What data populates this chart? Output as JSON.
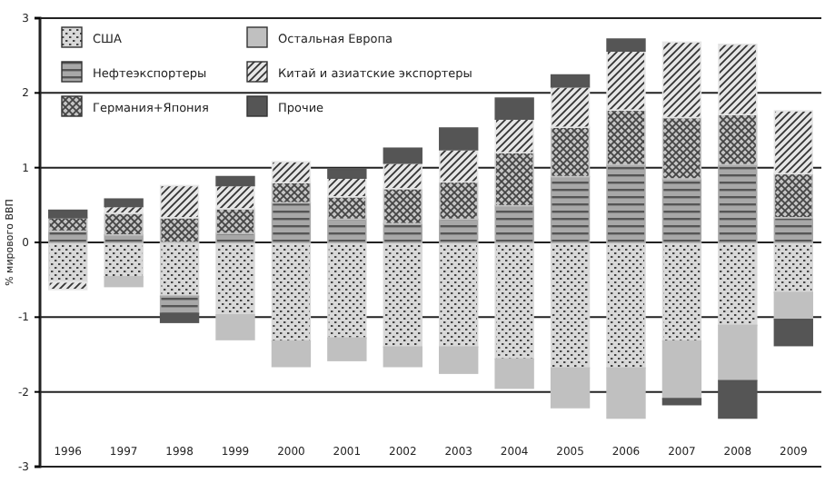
{
  "chart_data": {
    "type": "bar",
    "stacked": true,
    "ylabel": "% мирового ВВП",
    "categories": [
      "1996",
      "1997",
      "1998",
      "1999",
      "2000",
      "2001",
      "2002",
      "2003",
      "2004",
      "2005",
      "2006",
      "2007",
      "2008",
      "2009"
    ],
    "series": [
      {
        "name": "США",
        "color": "#d8d8d8",
        "values": [
          -0.53,
          -0.46,
          -0.72,
          -0.97,
          -1.32,
          -1.28,
          -1.4,
          -1.4,
          -1.56,
          -1.68,
          -1.68,
          -1.32,
          -1.11,
          -0.67
        ]
      },
      {
        "name": "Нефтеэкспортеры",
        "color": "#a8a8a8",
        "values": [
          0.15,
          0.1,
          -0.23,
          0.12,
          0.53,
          0.31,
          0.25,
          0.31,
          0.49,
          0.88,
          1.04,
          0.85,
          1.04,
          0.33
        ]
      },
      {
        "name": "Германия+Япония",
        "color": "#c4c4c4",
        "values": [
          0.18,
          0.29,
          0.33,
          0.33,
          0.27,
          0.3,
          0.47,
          0.5,
          0.71,
          0.66,
          0.73,
          0.82,
          0.67,
          0.59
        ]
      },
      {
        "name": "Остальная Европа",
        "color": "#c0c0c0",
        "values": [
          null,
          -0.13,
          null,
          -0.33,
          -0.34,
          -0.3,
          -0.26,
          -0.35,
          -0.39,
          -0.53,
          -0.67,
          -0.77,
          -0.74,
          -0.36
        ]
      },
      {
        "name": "Китай и азиатские экспортеры",
        "color": "#e6e6e6",
        "values": [
          -0.1,
          0.09,
          0.43,
          0.31,
          0.28,
          0.25,
          0.34,
          0.43,
          0.45,
          0.54,
          0.79,
          1.01,
          0.94,
          0.84
        ]
      },
      {
        "name": "Прочие",
        "color": "#555555",
        "values": [
          0.1,
          0.1,
          -0.12,
          0.12,
          null,
          0.12,
          0.2,
          0.29,
          0.28,
          0.16,
          0.16,
          -0.08,
          -0.5,
          -0.35
        ]
      }
    ],
    "ylim": [
      -3,
      3
    ],
    "yticks": [
      -3,
      -2,
      -1,
      0,
      1,
      2,
      3
    ],
    "grid": "y",
    "legend": "top left"
  }
}
